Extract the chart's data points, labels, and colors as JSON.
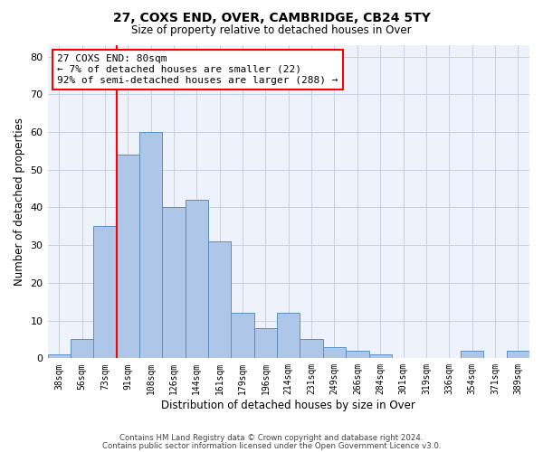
{
  "title": "27, COXS END, OVER, CAMBRIDGE, CB24 5TY",
  "subtitle": "Size of property relative to detached houses in Over",
  "xlabel": "Distribution of detached houses by size in Over",
  "ylabel": "Number of detached properties",
  "categories": [
    "38sqm",
    "56sqm",
    "73sqm",
    "91sqm",
    "108sqm",
    "126sqm",
    "144sqm",
    "161sqm",
    "179sqm",
    "196sqm",
    "214sqm",
    "231sqm",
    "249sqm",
    "266sqm",
    "284sqm",
    "301sqm",
    "319sqm",
    "336sqm",
    "354sqm",
    "371sqm",
    "389sqm"
  ],
  "values": [
    1,
    5,
    35,
    54,
    60,
    40,
    42,
    31,
    12,
    8,
    12,
    5,
    3,
    2,
    1,
    0,
    0,
    0,
    2,
    0,
    2
  ],
  "bar_color": "#aec6e8",
  "bar_edge_color": "#5a8fc2",
  "vline_color": "red",
  "annotation_text": "27 COXS END: 80sqm\n← 7% of detached houses are smaller (22)\n92% of semi-detached houses are larger (288) →",
  "annotation_box_color": "white",
  "annotation_box_edge_color": "red",
  "ylim": [
    0,
    83
  ],
  "yticks": [
    0,
    10,
    20,
    30,
    40,
    50,
    60,
    70,
    80
  ],
  "footer1": "Contains HM Land Registry data © Crown copyright and database right 2024.",
  "footer2": "Contains public sector information licensed under the Open Government Licence v3.0.",
  "background_color": "#eef2fb",
  "grid_color": "#c8d0e0"
}
